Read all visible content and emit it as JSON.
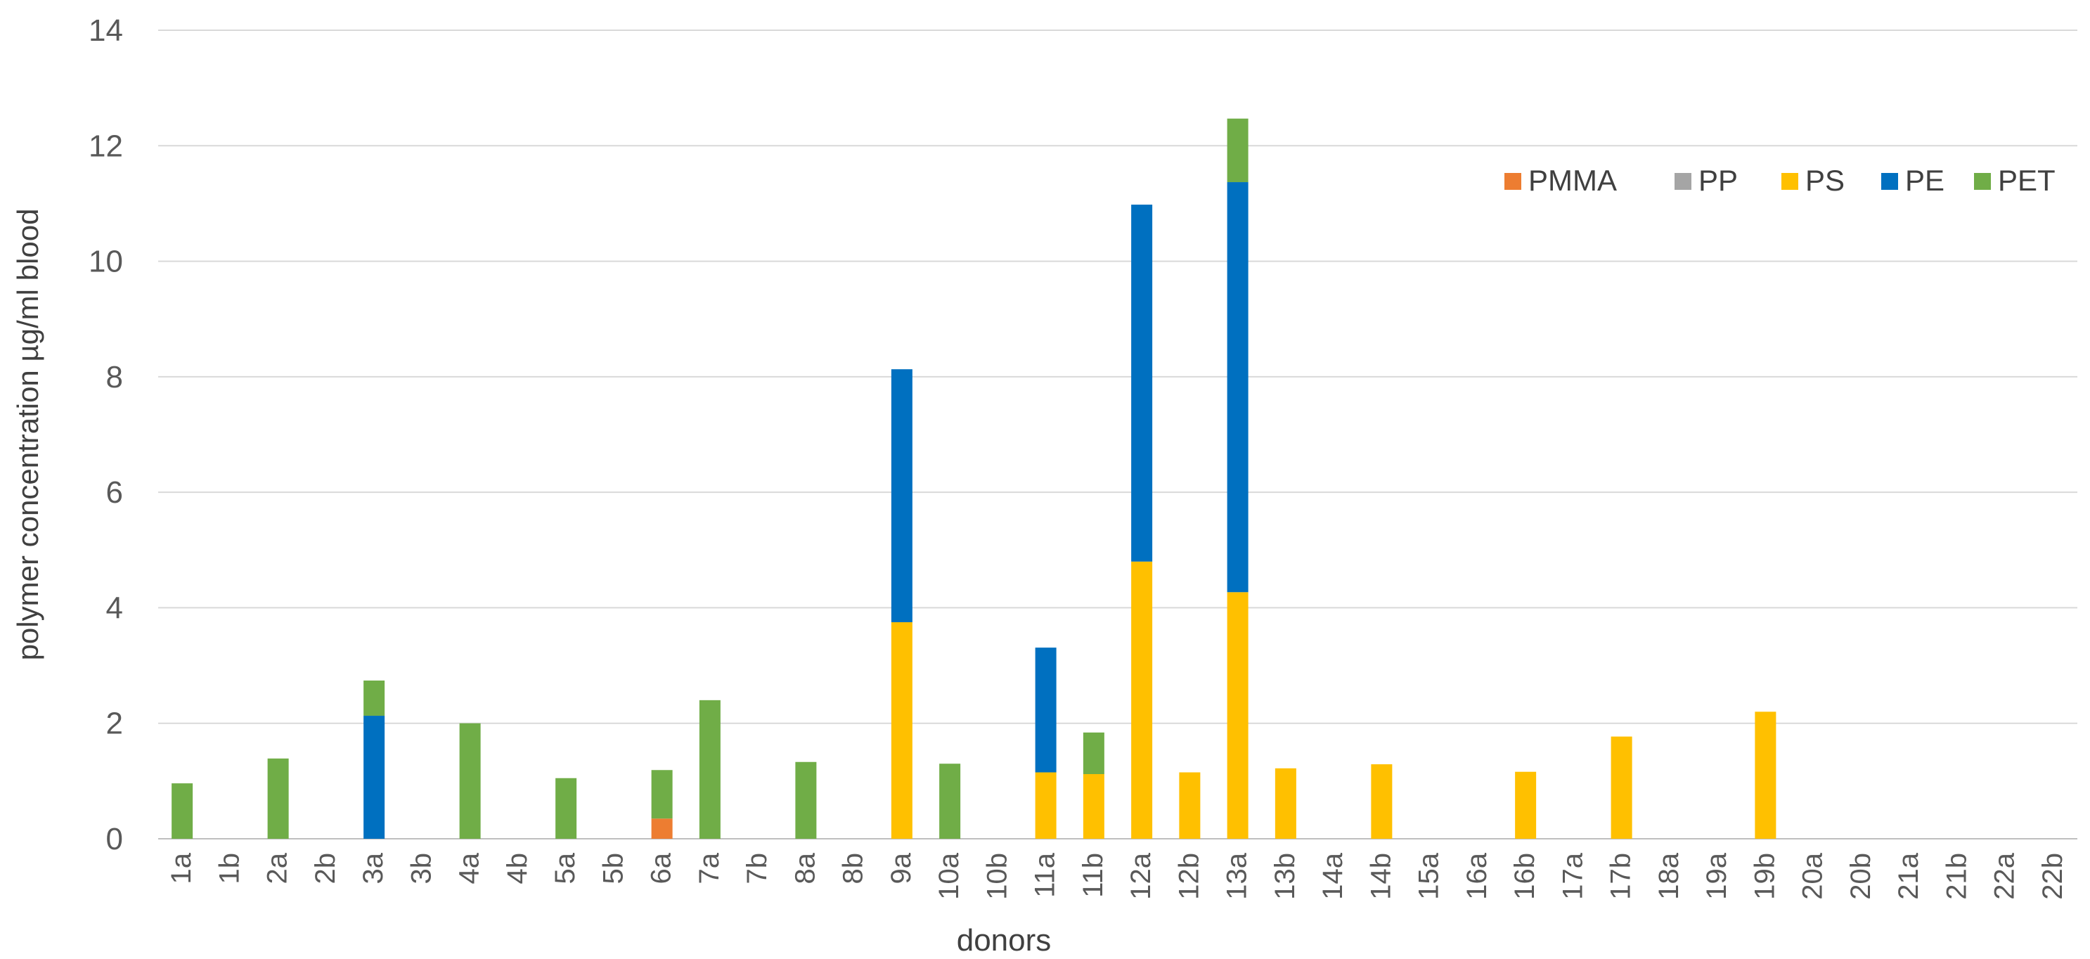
{
  "chart_data": {
    "type": "bar",
    "stacked": true,
    "title": "",
    "xlabel": "donors",
    "ylabel": "polymer concentration µg/ml blood",
    "ylim": [
      0,
      14
    ],
    "yticks": [
      0,
      2,
      4,
      6,
      8,
      10,
      12,
      14
    ],
    "grid": "horizontal",
    "legend_position": "top-right",
    "categories": [
      "1a",
      "1b",
      "2a",
      "2b",
      "3a",
      "3b",
      "4a",
      "4b",
      "5a",
      "5b",
      "6a",
      "7a",
      "7b",
      "8a",
      "8b",
      "9a",
      "10a",
      "10b",
      "11a",
      "11b",
      "12a",
      "12b",
      "13a",
      "13b",
      "14a",
      "14b",
      "15a",
      "16a",
      "16b",
      "17a",
      "17b",
      "18a",
      "19a",
      "19b",
      "20a",
      "20b",
      "21a",
      "21b",
      "22a",
      "22b"
    ],
    "series": [
      {
        "name": "PMMA",
        "color": "#ED7D31",
        "values": [
          0,
          0,
          0,
          0,
          0,
          0,
          0,
          0,
          0,
          0,
          0.35,
          0,
          0,
          0,
          0,
          0,
          0,
          0,
          0,
          0,
          0,
          0,
          0,
          0,
          0,
          0,
          0,
          0,
          0,
          0,
          0,
          0,
          0,
          0,
          0,
          0,
          0,
          0,
          0,
          0
        ]
      },
      {
        "name": "PP",
        "color": "#A5A5A5",
        "values": [
          0,
          0,
          0,
          0,
          0,
          0,
          0,
          0,
          0,
          0,
          0,
          0,
          0,
          0,
          0,
          0,
          0,
          0,
          0,
          0,
          0,
          0,
          0,
          0,
          0,
          0,
          0,
          0,
          0,
          0,
          0,
          0,
          0,
          0,
          0,
          0,
          0,
          0,
          0,
          0
        ]
      },
      {
        "name": "PS",
        "color": "#FFC000",
        "values": [
          0,
          0,
          0,
          0,
          0,
          0,
          0,
          0,
          0,
          0,
          0,
          0,
          0,
          0,
          0,
          3.75,
          0,
          0,
          1.15,
          1.12,
          4.8,
          1.15,
          4.27,
          1.22,
          0,
          1.29,
          0,
          0,
          1.16,
          0,
          1.77,
          0,
          0,
          2.2,
          0,
          0,
          0,
          0,
          0,
          0
        ]
      },
      {
        "name": "PE",
        "color": "#0070C0",
        "values": [
          0,
          0,
          0,
          0,
          2.13,
          0,
          0,
          0,
          0,
          0,
          0,
          0,
          0,
          0,
          0,
          4.38,
          0,
          0,
          2.16,
          0,
          6.18,
          0,
          7.1,
          0,
          0,
          0,
          0,
          0,
          0,
          0,
          0,
          0,
          0,
          0,
          0,
          0,
          0,
          0,
          0,
          0
        ]
      },
      {
        "name": "PET",
        "color": "#70AD47",
        "values": [
          0.96,
          0,
          1.39,
          0,
          0.61,
          0,
          2.0,
          0,
          1.05,
          0,
          0.84,
          2.4,
          0,
          1.33,
          0,
          0,
          1.3,
          0,
          0,
          0.72,
          0,
          0,
          1.1,
          0,
          0,
          0,
          0,
          0,
          0,
          0,
          0,
          0,
          0,
          0,
          0,
          0,
          0,
          0,
          0,
          0
        ]
      }
    ]
  }
}
